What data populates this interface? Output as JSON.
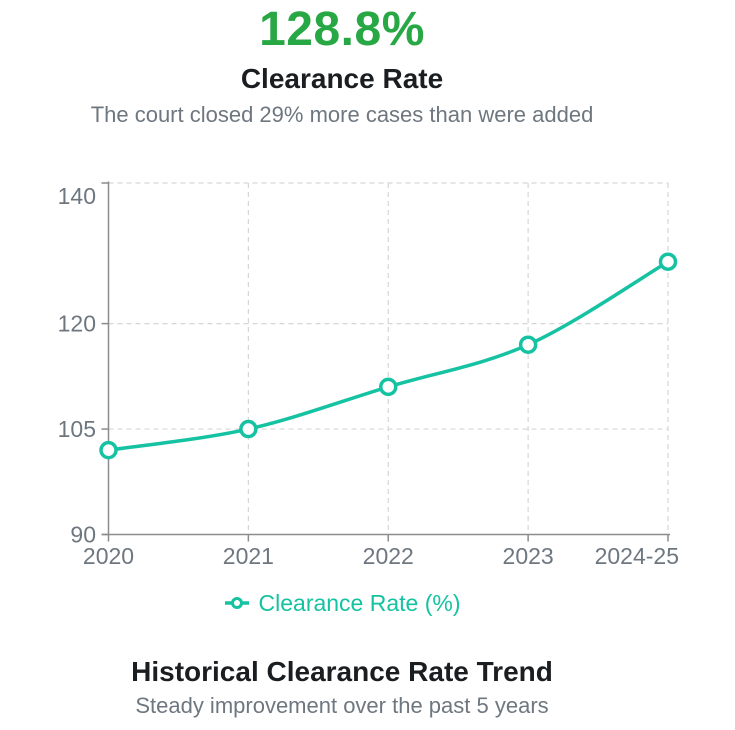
{
  "header": {
    "value": "128.8%",
    "title": "Clearance Rate",
    "subtitle": "The court closed 29% more cases than were added"
  },
  "chart_data": {
    "type": "line",
    "title": "Historical Clearance Rate Trend",
    "subtitle": "Steady improvement over the past 5 years",
    "categories": [
      "2020",
      "2021",
      "2022",
      "2023",
      "2024-25"
    ],
    "series": [
      {
        "name": "Clearance Rate (%)",
        "values": [
          102,
          105,
          111,
          117,
          128.8
        ]
      }
    ],
    "ylim": [
      90,
      140
    ],
    "yticks": [
      90,
      105,
      120,
      140
    ],
    "grid": true,
    "grid_style": "dashed",
    "legend_position": "bottom",
    "marker_style": "open-circle",
    "smooth": true
  },
  "colors": {
    "accent_teal": "#15c2a1",
    "headline_green": "#28a745",
    "text_gray": "#6e7780",
    "axis_line": "#8c8c8c",
    "gridline": "#d6d6d6"
  }
}
